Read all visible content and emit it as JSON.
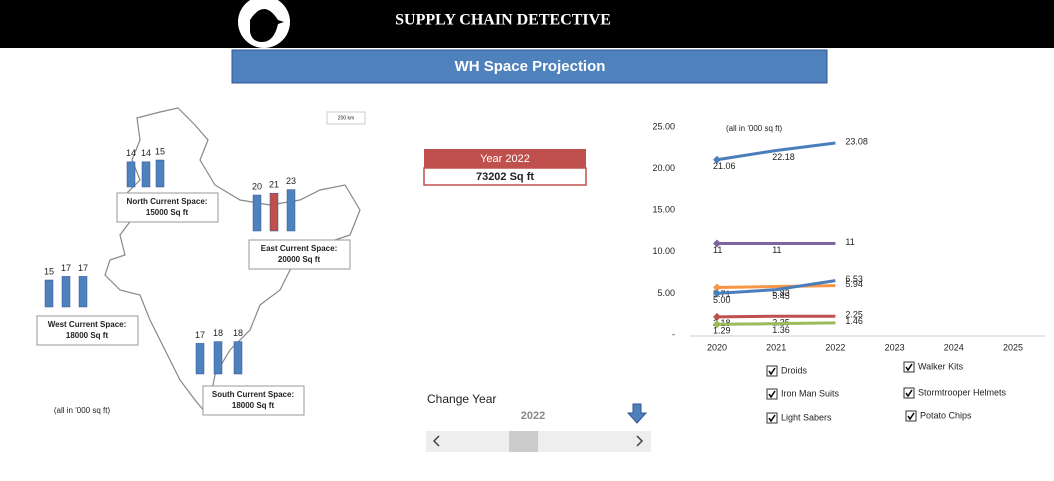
{
  "header": {
    "title": "SUPPLY CHAIN DETECTIVE"
  },
  "banner": {
    "title": "WH Space Projection"
  },
  "map": {
    "note": "(all in '000 sq ft)",
    "scale": "200 km",
    "color": "#4f81bd",
    "highlight_color": "#c0504d",
    "regions": [
      {
        "label": "North Current Space:",
        "space": "15000 Sq ft",
        "values": [
          14,
          14,
          15
        ]
      },
      {
        "label": "East Current Space:",
        "space": "20000 Sq ft",
        "values": [
          20,
          21,
          23
        ]
      },
      {
        "label": "West Current Space:",
        "space": "18000 Sq ft",
        "values": [
          15,
          17,
          17
        ]
      },
      {
        "label": "South Current Space:",
        "space": "18000 Sq ft",
        "values": [
          17,
          18,
          18
        ]
      }
    ]
  },
  "year_box": {
    "title": "Year 2022",
    "total": "73202 Sq ft"
  },
  "slider": {
    "label": "Change Year",
    "value": "2022"
  },
  "chart_data": {
    "type": "line",
    "note": "(all in '000 sq ft)",
    "categories": [
      "2020",
      "2021",
      "2022",
      "2023",
      "2024",
      "2025"
    ],
    "ylim": [
      0,
      25
    ],
    "yticks": [
      {
        "value": 0,
        "label": "-"
      },
      {
        "value": 5,
        "label": "5.00"
      },
      {
        "value": 10,
        "label": "10.00"
      },
      {
        "value": 15,
        "label": "15.00"
      },
      {
        "value": 20,
        "label": "20.00"
      },
      {
        "value": 25,
        "label": "25.00"
      }
    ],
    "series": [
      {
        "name": "Droids",
        "color": "#4a7ebb",
        "values": [
          21.06,
          22.18,
          23.08,
          null,
          null,
          null
        ]
      },
      {
        "name": "Walker Kits",
        "color": "#8064a2",
        "values": [
          11,
          11,
          11,
          null,
          null,
          null
        ]
      },
      {
        "name": "Iron Man Suits",
        "color": "#f79646",
        "values": [
          5.71,
          5.83,
          5.94,
          null,
          null,
          null
        ]
      },
      {
        "name": "Stormtrooper Helmets",
        "color": "#4a7ebb",
        "values": [
          5,
          5.45,
          6.53,
          null,
          null,
          null
        ],
        "value_labels": [
          "5.00",
          "5.45",
          "6.53",
          null,
          null,
          null
        ]
      },
      {
        "name": "Light Sabers",
        "color": "#c0504d",
        "values": [
          2.18,
          2.25,
          2.25,
          null,
          null,
          null
        ]
      },
      {
        "name": "Potato Chips",
        "color": "#9bbb59",
        "values": [
          1.29,
          1.36,
          1.46,
          null,
          null,
          null
        ]
      }
    ]
  }
}
